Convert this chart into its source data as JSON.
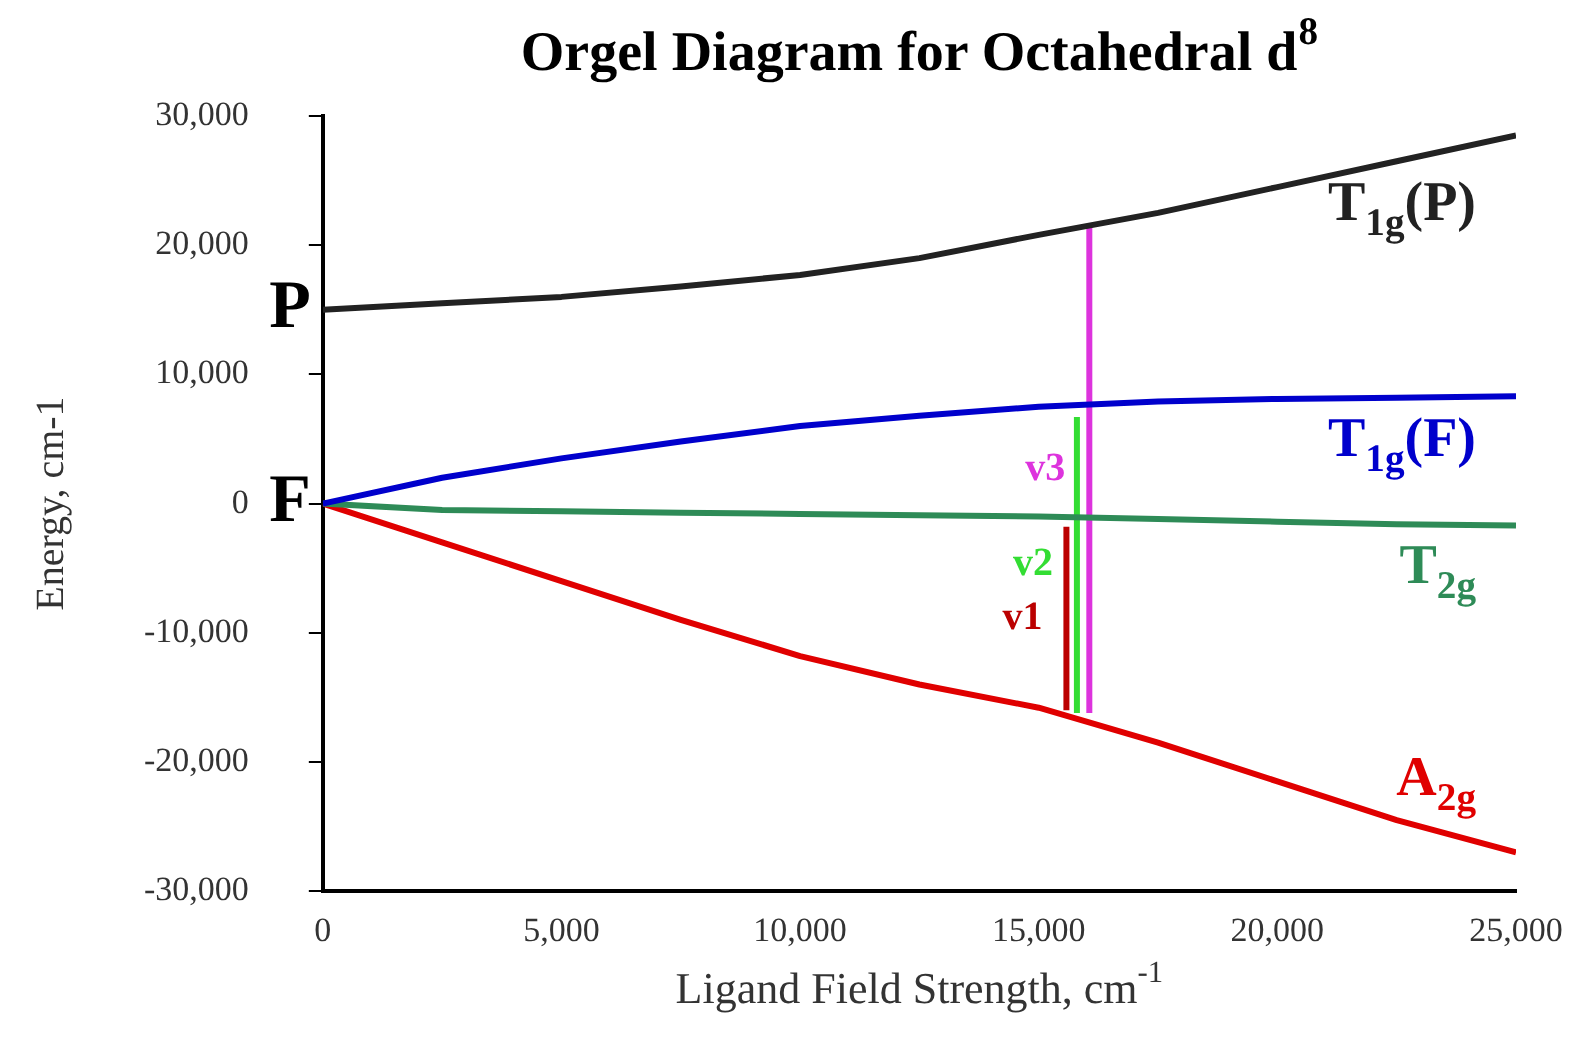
{
  "chart_data": {
    "type": "line",
    "title": "Orgel Diagram for Octahedral d$^{8}$",
    "xlabel": "Ligand Field Strength, cm$^{-1}$",
    "ylabel": "Energy, cm-1",
    "x": [
      0,
      2500,
      5000,
      7500,
      10000,
      12500,
      15000,
      17500,
      20000,
      22500,
      25000
    ],
    "series": [
      {
        "name": "T$_{1g}$(P)",
        "color": "#222222",
        "values": [
          15000,
          15500,
          16000,
          16800,
          17700,
          19000,
          20800,
          22500,
          24500,
          26500,
          28500
        ]
      },
      {
        "name": "T$_{1g}$(F)",
        "color": "#0000cc",
        "values": [
          0,
          2000,
          3500,
          4800,
          6000,
          6800,
          7500,
          7900,
          8100,
          8200,
          8300
        ]
      },
      {
        "name": "T$_{2g}$",
        "color": "#2e8b57",
        "values": [
          0,
          -500,
          -600,
          -700,
          -800,
          -900,
          -1000,
          -1200,
          -1400,
          -1600,
          -1700
        ]
      },
      {
        "name": "A$_{2g}$",
        "color": "#e00000",
        "values": [
          0,
          -3000,
          -6000,
          -9000,
          -11800,
          -14000,
          -15800,
          -18500,
          -21500,
          -24500,
          -27000
        ]
      },
      {
        "name": "v1",
        "color": "#bb0000",
        "x": [
          15580,
          15580
        ],
        "values": [
          -16000,
          -1800
        ]
      },
      {
        "name": "v2",
        "color": "#33dd33",
        "x": [
          15800,
          15800
        ],
        "values": [
          -16200,
          6700
        ]
      },
      {
        "name": "v3",
        "color": "#dd33dd",
        "x": [
          16060,
          16060
        ],
        "values": [
          -16200,
          21400
        ]
      }
    ],
    "annotations": [
      {
        "text": "P",
        "x": 0,
        "y": 15000
      },
      {
        "text": "F",
        "x": 0,
        "y": 0
      }
    ],
    "xlim": [
      0,
      25000
    ],
    "ylim": [
      -30000,
      30000
    ],
    "xticks": [
      0,
      {
        "value": 5000,
        "label": "5,000"
      },
      {
        "value": 10000,
        "label": "10,000"
      },
      {
        "value": 15000,
        "label": "15,000"
      },
      {
        "value": 20000,
        "label": "20,000"
      },
      {
        "value": 25000,
        "label": "25,000"
      }
    ],
    "yticks": [
      {
        "value": -30000,
        "label": "-30,000"
      },
      {
        "value": -20000,
        "label": "-20,000"
      },
      {
        "value": -10000,
        "label": "-10,000"
      },
      0,
      {
        "value": 10000,
        "label": "10,000"
      },
      {
        "value": 20000,
        "label": "20,000"
      },
      {
        "value": 30000,
        "label": "30,000"
      }
    ],
    "grid": false,
    "legend": false,
    "marker": "none",
    "line_style": "solid"
  }
}
